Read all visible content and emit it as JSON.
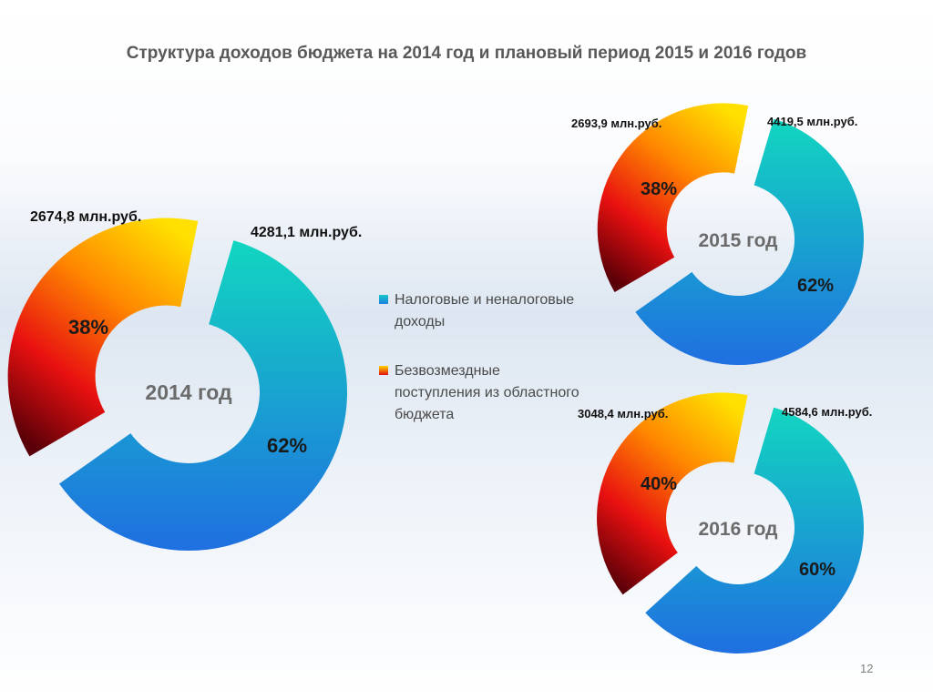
{
  "title": "Структура доходов бюджета на 2014 год и плановый период 2015 и 2016 годов",
  "colors": {
    "tax_gradient": [
      "#12d6c0",
      "#1f6fe0"
    ],
    "gratuitous_gradient": [
      "#ffe000",
      "#ff8800",
      "#e81010",
      "#5a0008"
    ]
  },
  "legend": {
    "tax": "Налоговые и неналоговые доходы",
    "gratuitous": "Безвозмездные поступления из областного бюджета"
  },
  "page_number": "12",
  "chart_data": [
    {
      "type": "pie",
      "title": "2014 год",
      "labels": [
        "Налоговые и неналоговые доходы",
        "Безвозмездные поступления из областного бюджета"
      ],
      "values": [
        62,
        38
      ],
      "percent_labels": [
        "62%",
        "38%"
      ],
      "amount_labels": [
        "4281,1 млн.руб.",
        "2674,8 млн.руб."
      ]
    },
    {
      "type": "pie",
      "title": "2015 год",
      "labels": [
        "Налоговые и неналоговые доходы",
        "Безвозмездные поступления из областного бюджета"
      ],
      "values": [
        62,
        38
      ],
      "percent_labels": [
        "62%",
        "38%"
      ],
      "amount_labels": [
        "4419,5 млн.руб.",
        "2693,9 млн.руб."
      ]
    },
    {
      "type": "pie",
      "title": "2016 год",
      "labels": [
        "Налоговые и неналоговые доходы",
        "Безвозмездные поступления из областного бюджета"
      ],
      "values": [
        60,
        40
      ],
      "percent_labels": [
        "60%",
        "40%"
      ],
      "amount_labels": [
        "4584,6 млн.руб.",
        "3048,4 млн.руб."
      ]
    }
  ]
}
